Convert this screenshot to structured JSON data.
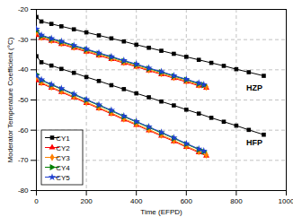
{
  "chart_data": {
    "type": "line",
    "x_label": "Time (EFPD)",
    "y_label": "Moderator Temperature Coefficient (°C)",
    "xlim": [
      0,
      1000
    ],
    "xticks": [
      0,
      200,
      400,
      600,
      800,
      1000
    ],
    "ylim": [
      -80,
      -20
    ],
    "yticks": [
      -80,
      -70,
      -60,
      -50,
      -40,
      -30,
      -20
    ],
    "grid": true,
    "legend": "bottom-left",
    "groups": [
      "HZP",
      "HFP"
    ],
    "annotations": [
      {
        "text": "HZP",
        "x": 840,
        "y": -46
      },
      {
        "text": "HFP",
        "x": 840,
        "y": -64
      }
    ],
    "series": [
      {
        "name": "CY1",
        "color": "#000000",
        "marker": "square",
        "x": [
          0,
          20,
          60,
          100,
          150,
          200,
          250,
          300,
          350,
          400,
          450,
          500,
          550,
          600,
          650,
          700,
          750,
          800,
          850,
          910
        ],
        "values": {
          "HZP": [
            -22.5,
            -24.0,
            -24.8,
            -25.6,
            -26.6,
            -27.6,
            -28.6,
            -29.6,
            -30.6,
            -31.7,
            -32.7,
            -33.7,
            -34.7,
            -35.7,
            -36.7,
            -37.7,
            -38.7,
            -39.8,
            -40.8,
            -42.0
          ],
          "HFP": [
            -35.5,
            -37.5,
            -38.6,
            -39.7,
            -41.0,
            -42.4,
            -43.7,
            -45.1,
            -46.4,
            -47.8,
            -49.1,
            -50.5,
            -51.8,
            -53.2,
            -54.5,
            -55.9,
            -57.2,
            -58.5,
            -59.9,
            -61.5
          ]
        }
      },
      {
        "name": "CY2",
        "color": "#ff0000",
        "marker": "triangle",
        "x": [
          0,
          20,
          60,
          100,
          150,
          200,
          250,
          300,
          350,
          400,
          450,
          500,
          550,
          600,
          650,
          680
        ],
        "values": {
          "HZP": [
            -28.5,
            -29.5,
            -30.5,
            -31.5,
            -32.8,
            -34.0,
            -35.3,
            -36.5,
            -37.8,
            -39.0,
            -40.3,
            -41.5,
            -42.8,
            -44.0,
            -45.3,
            -46.0
          ],
          "HFP": [
            -43.5,
            -44.5,
            -46.0,
            -47.4,
            -49.2,
            -51.0,
            -52.8,
            -54.6,
            -56.5,
            -58.3,
            -60.1,
            -61.9,
            -63.7,
            -65.6,
            -67.4,
            -68.5
          ]
        }
      },
      {
        "name": "CY3",
        "color": "#ff8000",
        "marker": "diamond",
        "x": [
          0,
          20,
          60,
          100,
          150,
          200,
          250,
          300,
          350,
          400,
          450,
          500,
          550,
          600,
          650,
          680
        ],
        "values": {
          "HZP": [
            -27.5,
            -29.2,
            -30.2,
            -31.2,
            -32.5,
            -33.7,
            -35.0,
            -36.2,
            -37.5,
            -38.7,
            -40.0,
            -41.2,
            -42.5,
            -43.7,
            -45.0,
            -45.7
          ],
          "HFP": [
            -42.5,
            -44.2,
            -45.7,
            -47.1,
            -48.9,
            -50.7,
            -52.5,
            -54.3,
            -56.2,
            -58.0,
            -59.8,
            -61.6,
            -63.4,
            -65.3,
            -67.1,
            -68.2
          ]
        }
      },
      {
        "name": "CY4",
        "color": "#008000",
        "marker": "triangle-right",
        "x": [
          0,
          20,
          60,
          100,
          150,
          200,
          250,
          300,
          350,
          400,
          450,
          500,
          550,
          600,
          650,
          670
        ],
        "values": {
          "HZP": [
            -27.0,
            -28.8,
            -29.8,
            -30.8,
            -32.1,
            -33.3,
            -34.6,
            -35.8,
            -37.1,
            -38.3,
            -39.6,
            -40.8,
            -42.1,
            -43.3,
            -44.6,
            -45.1
          ],
          "HFP": [
            -41.5,
            -43.5,
            -45.0,
            -46.4,
            -48.2,
            -50.0,
            -51.8,
            -53.6,
            -55.5,
            -57.3,
            -59.1,
            -60.9,
            -62.7,
            -64.6,
            -66.4,
            -67.1
          ]
        }
      },
      {
        "name": "CY5",
        "color": "#2040d0",
        "marker": "star",
        "x": [
          0,
          20,
          60,
          100,
          150,
          200,
          250,
          300,
          350,
          400,
          450,
          500,
          550,
          600,
          650,
          670
        ],
        "values": {
          "HZP": [
            -26.5,
            -28.5,
            -29.6,
            -30.6,
            -31.9,
            -33.1,
            -34.4,
            -35.6,
            -36.9,
            -38.1,
            -39.4,
            -40.6,
            -41.9,
            -43.1,
            -44.4,
            -44.9
          ],
          "HFP": [
            -42.0,
            -43.3,
            -44.8,
            -46.2,
            -48.0,
            -49.8,
            -51.6,
            -53.4,
            -55.3,
            -57.1,
            -58.9,
            -60.7,
            -62.5,
            -64.4,
            -66.2,
            -66.9
          ]
        }
      }
    ]
  }
}
